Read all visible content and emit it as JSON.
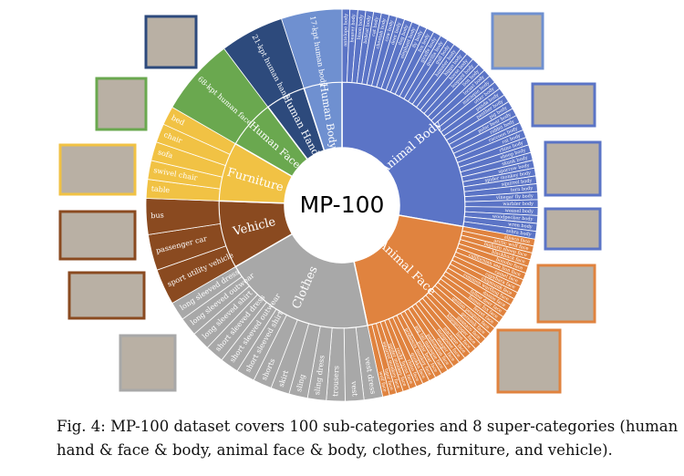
{
  "figure": {
    "center": "MP-100",
    "groups": [
      {
        "name": "Animal Body",
        "color": "#5b74c6",
        "span": 100,
        "children": [
          "antelope body",
          "beaver body",
          "bison body",
          "bobcat body",
          "cat body",
          "cheetah body",
          "cow body",
          "deer body",
          "dog body",
          "elephant body",
          "fly body",
          "fox body",
          "giraffe body",
          "gorilla body",
          "gull body",
          "hamster body",
          "hippo body",
          "horse body",
          "leopard body",
          "lion body",
          "locust body",
          "macaque body",
          "otter body",
          "panda body",
          "panther body",
          "pig body",
          "polar bear body",
          "rabbit body",
          "raccoon body",
          "rat body",
          "rhino body",
          "sheep body",
          "skunk body",
          "sparrow body",
          "spider monkey body",
          "squirrel body",
          "tern body",
          "vinegar fly body",
          "warbler body",
          "weasel body",
          "woodpecker body",
          "wren body",
          "zebra body"
        ]
      },
      {
        "name": "Animal Face",
        "color": "#e0833f",
        "span": 68,
        "children": [
          "alpaca face",
          "arctic wolf face",
          "bighorn sheep face",
          "blackbuck face",
          "bonobo face",
          "californian sea lion face",
          "camel face",
          "capybara face",
          "chipmunk face",
          "common warthog face",
          "dassie face",
          "fallow deer face",
          "fennec fox face",
          "ferret face",
          "gentoo penguin face",
          "gerenuk face",
          "guanaco face",
          "klipspringer face",
          "lion face",
          "macaque face",
          "mongoose face",
          "onager face",
          "pademelon face",
          "pig tail macaque face",
          "polar bear face",
          "proboscis monkey face",
          "quokka face",
          "rhino face",
          "rocky hyrax face",
          "spider monkey face",
          "squirrel monkey face",
          "tiger face",
          "wolf face"
        ]
      },
      {
        "name": "Clothes",
        "color": "#a8a8a8",
        "span": 72,
        "children": [
          "vest dress",
          "vest",
          "trousers",
          "sling dress",
          "sling",
          "skirt",
          "shorts",
          "short sleeved shirt",
          "short sleeved outwear",
          "short sleeved dress",
          "long sleeved shirt",
          "long sleeved outwear",
          "long sleeved dress"
        ]
      },
      {
        "name": "Vehicle",
        "color": "#8a4a20",
        "span": 32,
        "children": [
          "sport utility vehicle",
          "passenger car",
          "bus"
        ]
      },
      {
        "name": "Furniture",
        "color": "#f1c244",
        "span": 28,
        "children": [
          "table",
          "swivel chair",
          "sofa",
          "chair",
          "bed"
        ]
      },
      {
        "name": "Human Face",
        "color": "#6aa84f",
        "span": 23,
        "children": [
          "68-kpt human face"
        ]
      },
      {
        "name": "Human Hand",
        "color": "#2d4a7c",
        "span": 19,
        "children": [
          "21-kpt human hand"
        ]
      },
      {
        "name": "Human Body",
        "color": "#6f90d0",
        "span": 18,
        "children": [
          "17-kpt human body"
        ]
      }
    ]
  },
  "caption": [
    "Fig. 4: MP-100 dataset covers 100 sub-categories and 8 super-categories (human",
    "hand & face & body, animal face & body, clothes, furniture, and vehicle)."
  ]
}
